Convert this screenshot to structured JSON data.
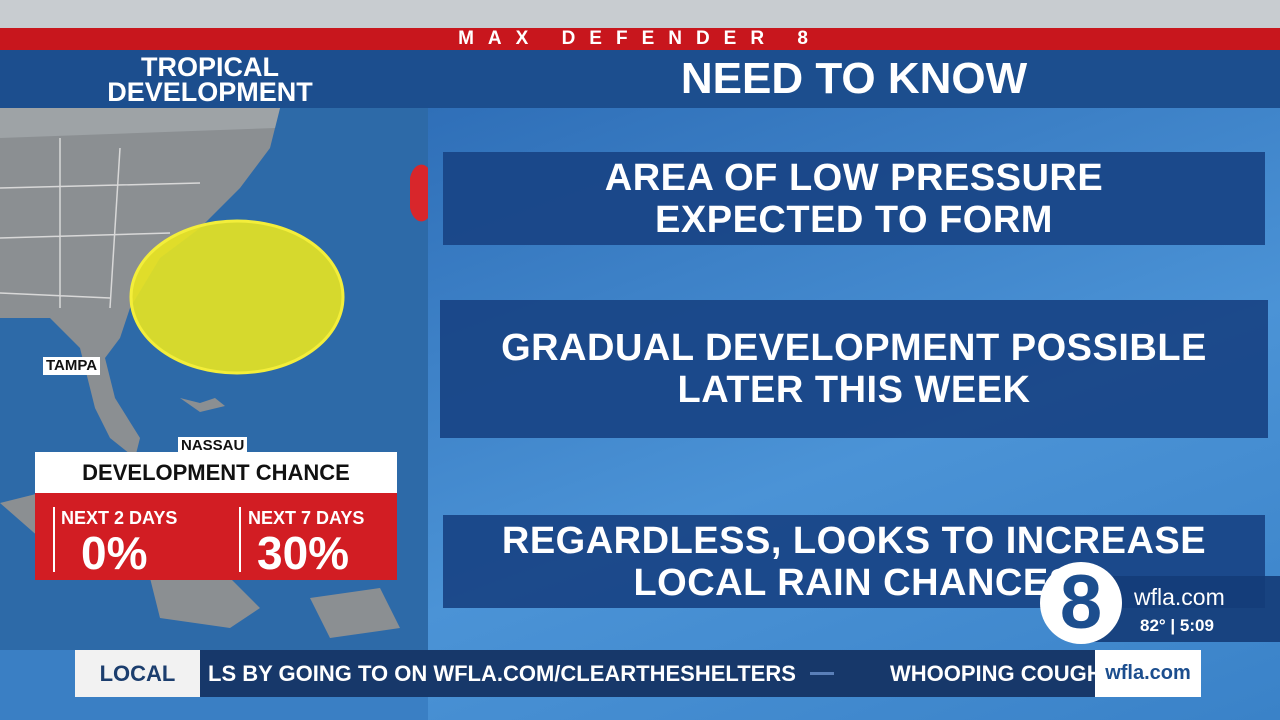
{
  "banner": "MAX DEFENDER 8",
  "map": {
    "title": [
      "TROPICAL",
      "DEVELOPMENT"
    ],
    "labels": [
      "TAMPA",
      "NASSAU"
    ]
  },
  "development_chance": {
    "title": "DEVELOPMENT CHANCE",
    "columns": [
      {
        "label": "NEXT 2 DAYS",
        "value": "0%"
      },
      {
        "label": "NEXT 7 DAYS",
        "value": "30%"
      }
    ]
  },
  "need_to_know": {
    "title": "NEED TO KNOW",
    "items": [
      [
        "AREA OF LOW PRESSURE",
        "EXPECTED TO FORM"
      ],
      [
        "GRADUAL DEVELOPMENT POSSIBLE",
        "LATER THIS WEEK"
      ],
      [
        "REGARDLESS, LOOKS TO INCREASE",
        "LOCAL RAIN CHANCES"
      ]
    ]
  },
  "station": {
    "logo": "8",
    "site": "wfla.com",
    "weather": "82° | 5:09"
  },
  "ticker": {
    "section": "LOCAL",
    "items": [
      "LS BY GOING TO ON WFLA.COM/CLEARTHESHELTERS",
      "WHOOPING COUGH"
    ],
    "logo": "wfla.com"
  }
}
